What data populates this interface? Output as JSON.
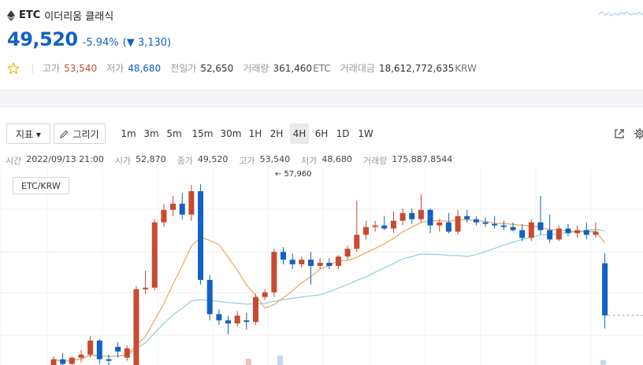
{
  "coin": {
    "symbol": "ETC",
    "korean_name": "이더리움 클래식",
    "icon": "ethereum-classic-icon"
  },
  "quote": {
    "price": "49,520",
    "change_pct": "-5.94%",
    "change_amount": "(▼ 3,130)"
  },
  "stats": {
    "high_label": "고가",
    "high": "53,540",
    "low_label": "저가",
    "low": "48,680",
    "prev_label": "전일가",
    "prev": "52,650",
    "volume_label": "거래량",
    "volume": "361,460",
    "volume_unit": "ETC",
    "value_label": "거래대금",
    "value": "18,612,772,635",
    "value_unit": "KRW"
  },
  "toolbar": {
    "indicator_label": "지표 ▾",
    "draw_label": "그리기",
    "timeframes": [
      "1m",
      "3m",
      "5m",
      "15m",
      "30m",
      "1H",
      "2H",
      "4H",
      "6H",
      "1D",
      "1W"
    ],
    "active_timeframe": "4H"
  },
  "ohlc": {
    "time_label": "시간",
    "time": "2022/09/13 21:00",
    "open_label": "시가",
    "open": "52,870",
    "close_label": "종가",
    "close": "49,520",
    "high_label": "고가",
    "high": "53,540",
    "low_label": "저가",
    "low": "48,680",
    "vol_label": "거래량",
    "vol": "175,887.8544"
  },
  "chart_data": {
    "type": "candlestick",
    "pair": "ETC/KRW",
    "high_marker": "← 57,960",
    "up_color": "#c84a31",
    "down_color": "#1261c4",
    "candles": [
      [
        46000,
        46900,
        45800,
        46700
      ],
      [
        46700,
        47100,
        46200,
        46400
      ],
      [
        46400,
        46900,
        46100,
        46800
      ],
      [
        46800,
        47300,
        46500,
        47000
      ],
      [
        47000,
        48200,
        46800,
        47900
      ],
      [
        47900,
        48000,
        46400,
        46700
      ],
      [
        46700,
        47000,
        46200,
        46600
      ],
      [
        47500,
        47800,
        46800,
        47200
      ],
      [
        46800,
        47600,
        46600,
        47400
      ],
      [
        45800,
        51400,
        45500,
        51200
      ],
      [
        51200,
        52400,
        50900,
        51300
      ],
      [
        51300,
        55700,
        51100,
        55500
      ],
      [
        55500,
        56700,
        55200,
        56300
      ],
      [
        56300,
        57200,
        55900,
        56700
      ],
      [
        56700,
        57400,
        55700,
        56000
      ],
      [
        56000,
        57900,
        55600,
        57500
      ],
      [
        57500,
        57960,
        51500,
        51800
      ],
      [
        51800,
        52100,
        49200,
        49600
      ],
      [
        49600,
        49900,
        48900,
        49200
      ],
      [
        49200,
        49500,
        48300,
        49000
      ],
      [
        49000,
        49800,
        48800,
        49500
      ],
      [
        49200,
        49700,
        48600,
        49100
      ],
      [
        49100,
        50900,
        48900,
        50700
      ],
      [
        50700,
        51200,
        50500,
        51000
      ],
      [
        51000,
        53800,
        50700,
        53600
      ],
      [
        53600,
        53900,
        52800,
        53100
      ],
      [
        53100,
        53500,
        52500,
        52800
      ],
      [
        52800,
        53300,
        52600,
        53100
      ],
      [
        53100,
        53600,
        51500,
        52700
      ],
      [
        52700,
        53200,
        52500,
        52900
      ],
      [
        52900,
        53200,
        52500,
        52700
      ],
      [
        52700,
        53400,
        52500,
        53300
      ],
      [
        53300,
        54000,
        53100,
        53800
      ],
      [
        53800,
        56900,
        53600,
        54700
      ],
      [
        54700,
        55600,
        54400,
        55200
      ],
      [
        55200,
        55600,
        54900,
        55300
      ],
      [
        55300,
        55900,
        55000,
        55100
      ],
      [
        55100,
        56200,
        54800,
        55600
      ],
      [
        55600,
        56400,
        55300,
        56100
      ],
      [
        56100,
        56400,
        55400,
        55700
      ],
      [
        55700,
        57300,
        55500,
        56300
      ],
      [
        56300,
        56400,
        54800,
        55300
      ],
      [
        55300,
        55700,
        54900,
        55500
      ],
      [
        55500,
        56100,
        54800,
        54900
      ],
      [
        54900,
        56300,
        54700,
        55900
      ],
      [
        55900,
        56300,
        55500,
        55700
      ],
      [
        55700,
        55900,
        55300,
        55500
      ],
      [
        55500,
        55800,
        55200,
        55400
      ],
      [
        55400,
        55900,
        55100,
        55300
      ],
      [
        55300,
        55600,
        55000,
        55200
      ],
      [
        55200,
        55500,
        54900,
        55000
      ],
      [
        55000,
        55400,
        54300,
        54500
      ],
      [
        54500,
        55700,
        54300,
        55500
      ],
      [
        55500,
        57200,
        54700,
        55000
      ],
      [
        55000,
        56000,
        54200,
        54400
      ],
      [
        54400,
        55300,
        54300,
        55100
      ],
      [
        55100,
        55400,
        54600,
        54800
      ],
      [
        54800,
        55300,
        54500,
        55000
      ],
      [
        55000,
        55500,
        54400,
        54700
      ],
      [
        54700,
        55500,
        54500,
        54900
      ],
      [
        52870,
        53540,
        48680,
        49520
      ]
    ]
  }
}
